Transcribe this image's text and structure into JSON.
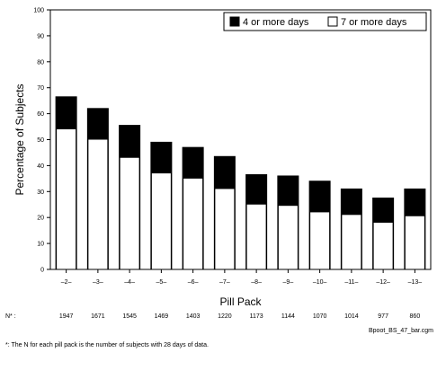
{
  "chart_data": {
    "type": "bar",
    "categories": [
      "–2–",
      "–3–",
      "–4–",
      "–5–",
      "–6–",
      "–7–",
      "–8–",
      "–9–",
      "–10–",
      "–11–",
      "–12–",
      "–13–"
    ],
    "series": [
      {
        "name": "4 or more days",
        "values": [
          66.5,
          62,
          55.5,
          49,
          47,
          43.5,
          36.5,
          36,
          34,
          31,
          27.5,
          31
        ],
        "color": "#000000"
      },
      {
        "name": "7 or more days",
        "values": [
          54,
          50,
          43,
          37,
          35,
          31,
          25,
          24.5,
          22,
          21,
          18,
          20.5
        ],
        "color": "#ffffff"
      }
    ],
    "xlabel": "Pill Pack",
    "ylabel": "Percentage of Subjects",
    "ylim": [
      0,
      100
    ],
    "yticks": [
      0,
      10,
      20,
      30,
      40,
      50,
      60,
      70,
      80,
      90,
      100
    ],
    "grid": false,
    "legend_position": "top-right"
  },
  "n_row": {
    "prefix": "N* :",
    "values": [
      "1947",
      "1671",
      "1545",
      "1469",
      "1403",
      "1220",
      "1173",
      "1144",
      "1070",
      "1014",
      "977",
      "860"
    ]
  },
  "file_name": "Bpoot_BS_47_bar.cgm",
  "footnote": "*: The N for each pill pack is the number of subjects with 28 days of data."
}
